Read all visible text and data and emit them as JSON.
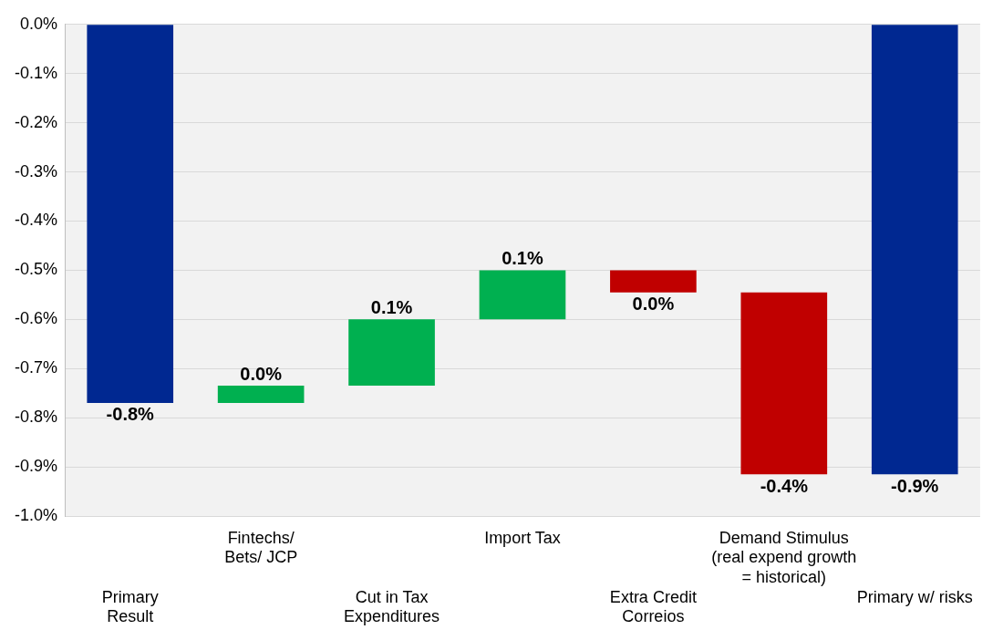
{
  "chart_data": {
    "type": "bar",
    "categories": [
      "Primary\nResult",
      "Fintechs/\nBets/ JCP",
      "Cut in Tax\nExpenditures",
      "Import Tax",
      "Extra Credit\nCorreios",
      "Demand Stimulus\n(real expend growth\n= historical)",
      "Primary w/ risks"
    ],
    "base": [
      0,
      -0.77,
      -0.735,
      -0.6,
      -0.5,
      -0.545,
      0
    ],
    "values": [
      -0.77,
      0.035,
      0.135,
      0.1,
      -0.045,
      -0.37,
      -0.915
    ],
    "colors": [
      "#002891",
      "#00b050",
      "#00b050",
      "#00b050",
      "#c00000",
      "#c00000",
      "#002891"
    ],
    "value_labels": [
      "-0.8%",
      "0.0%",
      "0.1%",
      "0.1%",
      "0.0%",
      "-0.4%",
      "-0.9%"
    ],
    "ylim": [
      -1.0,
      0.0
    ],
    "yticks": [
      {
        "value": 0,
        "label": "0.0%"
      },
      {
        "value": -0.1,
        "label": "-0.1%"
      },
      {
        "value": -0.2,
        "label": "-0.2%"
      },
      {
        "value": -0.3,
        "label": "-0.3%"
      },
      {
        "value": -0.4,
        "label": "-0.4%"
      },
      {
        "value": -0.5,
        "label": "-0.5%"
      },
      {
        "value": -0.6,
        "label": "-0.6%"
      },
      {
        "value": -0.7,
        "label": "-0.7%"
      },
      {
        "value": -0.8,
        "label": "-0.8%"
      },
      {
        "value": -0.9,
        "label": "-0.9%"
      },
      {
        "value": -1.0,
        "label": "-1.0%"
      }
    ],
    "grid": "y",
    "legend": false
  }
}
